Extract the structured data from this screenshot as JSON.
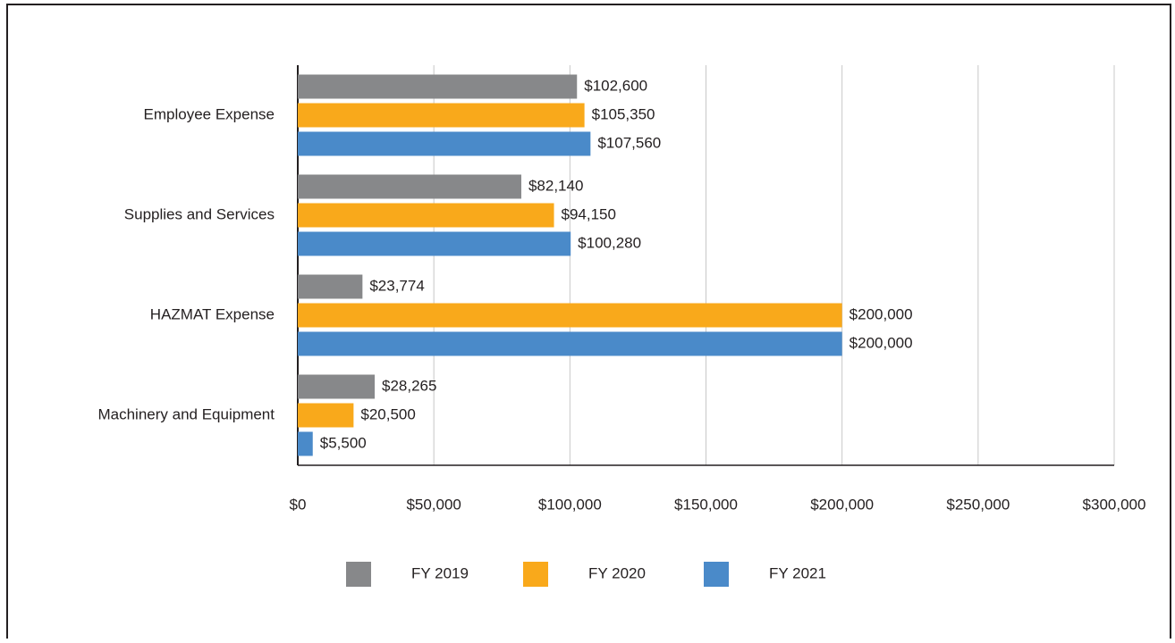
{
  "chart_data": {
    "type": "bar",
    "orientation": "horizontal",
    "categories": [
      "Employee Expense",
      "Supplies and Services",
      "HAZMAT Expense",
      "Machinery and Equipment"
    ],
    "series": [
      {
        "name": "FY 2019",
        "color": "#87888a",
        "values": [
          102600,
          82140,
          23774,
          28265
        ],
        "value_labels": [
          "$102,600",
          "$82,140",
          "$23,774",
          "$28,265"
        ]
      },
      {
        "name": "FY 2020",
        "color": "#f9a91b",
        "values": [
          105350,
          94150,
          200000,
          20500
        ],
        "value_labels": [
          "$105,350",
          "$94,150",
          "$200,000",
          "$20,500"
        ]
      },
      {
        "name": "FY 2021",
        "color": "#4a8ac9",
        "values": [
          107560,
          100280,
          200000,
          5500
        ],
        "value_labels": [
          "$107,560",
          "$100,280",
          "$200,000",
          "$5,500"
        ]
      }
    ],
    "xlim": [
      0,
      300000
    ],
    "xticks": [
      {
        "value": 0,
        "label": "$0"
      },
      {
        "value": 50000,
        "label": "$50,000"
      },
      {
        "value": 100000,
        "label": "$100,000"
      },
      {
        "value": 150000,
        "label": "$150,000"
      },
      {
        "value": 200000,
        "label": "$200,000"
      },
      {
        "value": 250000,
        "label": "$250,000"
      },
      {
        "value": 300000,
        "label": "$300,000"
      }
    ],
    "grid": true,
    "legend": "bottom"
  }
}
